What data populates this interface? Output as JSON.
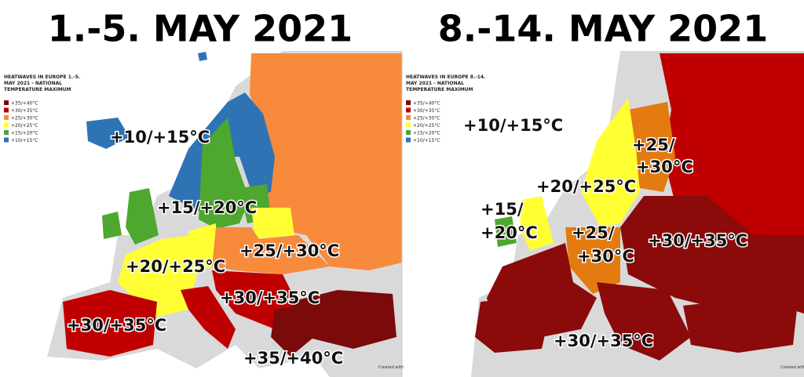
{
  "panels": [
    {
      "title": "1.-5. MAY 2021",
      "legend_title": [
        "HEATWAVES IN EUROPE 1.-5.",
        "MAY 2021 - NATIONAL",
        "TEMPERATURE MAXIMUM"
      ],
      "legend": [
        {
          "label": "+35/+40°C",
          "color": "#7b0a0a"
        },
        {
          "label": "+30/+35°C",
          "color": "#c00000"
        },
        {
          "label": "+25/+30°C",
          "color": "#f88a3c"
        },
        {
          "label": "+20/+25°C",
          "color": "#ffff33"
        },
        {
          "label": "+15/+20°C",
          "color": "#4ea72e"
        },
        {
          "label": "+10/+15°C",
          "color": "#2e74b5"
        }
      ],
      "labels": [
        "+10/+15°C",
        "+15/+20°C",
        "+20/+25°C",
        "+25/+30°C",
        "+30/+35°C",
        "+30/+35°C",
        "+35/+40°C"
      ],
      "credit": "Created with"
    },
    {
      "title": "8.-14. MAY 2021",
      "legend_title": [
        "HEATWAVES IN EUROPE 8.-14.",
        "MAY 2021 - NATIONAL",
        "TEMPERATURE MAXIMUM"
      ],
      "legend": [
        {
          "label": "+35/+40°C",
          "color": "#7b0a0a"
        },
        {
          "label": "+30/+35°C",
          "color": "#c00000"
        },
        {
          "label": "+25/+30°C",
          "color": "#f88a3c"
        },
        {
          "label": "+20/+25°C",
          "color": "#ffff33"
        },
        {
          "label": "+15/+20°C",
          "color": "#4ea72e"
        },
        {
          "label": "+10/+15°C",
          "color": "#2e74b5"
        }
      ],
      "labels": [
        "+10/+15°C",
        "+25/",
        "+30°C",
        "+20/+25°C",
        "+15/",
        "+20°C",
        "+25/",
        "+30°C",
        "+30/+35°C",
        "+30/+35°C"
      ],
      "credit": "Created with"
    }
  ]
}
